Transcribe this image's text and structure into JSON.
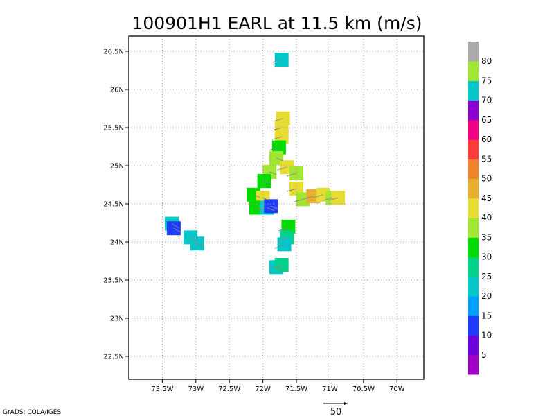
{
  "chart_data": {
    "type": "heatmap",
    "title": "100901H1 EARL at 11.5 km (m/s)",
    "xlabel": "",
    "ylabel": "",
    "xlim": [
      -74.0,
      -69.6
    ],
    "ylim": [
      22.2,
      26.7
    ],
    "x_ticks": [
      {
        "value": -73.5,
        "label": "73.5W"
      },
      {
        "value": -73.0,
        "label": "73W"
      },
      {
        "value": -72.5,
        "label": "72.5W"
      },
      {
        "value": -72.0,
        "label": "72W"
      },
      {
        "value": -71.5,
        "label": "71.5W"
      },
      {
        "value": -71.0,
        "label": "71W"
      },
      {
        "value": -70.5,
        "label": "70.5W"
      },
      {
        "value": -70.0,
        "label": "70W"
      }
    ],
    "y_ticks": [
      {
        "value": 22.5,
        "label": "22.5N"
      },
      {
        "value": 23.0,
        "label": "23N"
      },
      {
        "value": 23.5,
        "label": "23.5N"
      },
      {
        "value": 24.0,
        "label": "24N"
      },
      {
        "value": 24.5,
        "label": "24.5N"
      },
      {
        "value": 25.0,
        "label": "25N"
      },
      {
        "value": 25.5,
        "label": "25.5N"
      },
      {
        "value": 26.0,
        "label": "26N"
      },
      {
        "value": 26.5,
        "label": "26.5N"
      }
    ],
    "grid": true,
    "colorbar": {
      "levels": [
        "5",
        "10",
        "15",
        "20",
        "25",
        "30",
        "35",
        "40",
        "45",
        "50",
        "55",
        "60",
        "65",
        "70",
        "75",
        "80"
      ],
      "colors": [
        "#a000c8",
        "#6e00dc",
        "#1e3cff",
        "#00a0ff",
        "#00c8c8",
        "#00d28c",
        "#00dc00",
        "#a0e632",
        "#e6dc32",
        "#e6af2d",
        "#f08228",
        "#fa3c3c",
        "#f00082",
        "#8c00d2",
        "#00c8c8",
        "#a0e632",
        "#aaaaaa"
      ]
    },
    "cells": [
      {
        "lon": -71.72,
        "lat": 26.39,
        "speed": 74
      },
      {
        "lon": -71.7,
        "lat": 25.62,
        "speed": 42
      },
      {
        "lon": -71.72,
        "lat": 25.5,
        "speed": 40
      },
      {
        "lon": -71.72,
        "lat": 25.38,
        "speed": 40
      },
      {
        "lon": -71.76,
        "lat": 25.24,
        "speed": 34
      },
      {
        "lon": -71.8,
        "lat": 25.1,
        "speed": 38
      },
      {
        "lon": -71.64,
        "lat": 24.98,
        "speed": 40
      },
      {
        "lon": -71.9,
        "lat": 24.92,
        "speed": 37
      },
      {
        "lon": -71.5,
        "lat": 24.9,
        "speed": 39
      },
      {
        "lon": -71.5,
        "lat": 24.7,
        "speed": 40
      },
      {
        "lon": -71.4,
        "lat": 24.56,
        "speed": 37
      },
      {
        "lon": -71.25,
        "lat": 24.6,
        "speed": 46
      },
      {
        "lon": -71.1,
        "lat": 24.62,
        "speed": 42
      },
      {
        "lon": -70.96,
        "lat": 24.58,
        "speed": 37
      },
      {
        "lon": -70.88,
        "lat": 24.58,
        "speed": 40
      },
      {
        "lon": -71.98,
        "lat": 24.8,
        "speed": 34
      },
      {
        "lon": -72.14,
        "lat": 24.62,
        "speed": 34
      },
      {
        "lon": -72.0,
        "lat": 24.58,
        "speed": 40
      },
      {
        "lon": -72.1,
        "lat": 24.45,
        "speed": 34
      },
      {
        "lon": -71.94,
        "lat": 24.45,
        "speed": 20
      },
      {
        "lon": -71.88,
        "lat": 24.47,
        "speed": 12
      },
      {
        "lon": -71.62,
        "lat": 24.2,
        "speed": 33
      },
      {
        "lon": -71.64,
        "lat": 24.06,
        "speed": 28
      },
      {
        "lon": -71.68,
        "lat": 23.97,
        "speed": 22
      },
      {
        "lon": -71.8,
        "lat": 23.67,
        "speed": 22
      },
      {
        "lon": -71.72,
        "lat": 23.7,
        "speed": 26
      },
      {
        "lon": -73.36,
        "lat": 24.24,
        "speed": 21
      },
      {
        "lon": -73.33,
        "lat": 24.18,
        "speed": 12
      },
      {
        "lon": -73.08,
        "lat": 24.06,
        "speed": 20
      },
      {
        "lon": -72.98,
        "lat": 23.98,
        "speed": 21
      }
    ],
    "reference_vector": {
      "label": "50"
    },
    "credit": "GrADS: COLA/IGES"
  }
}
